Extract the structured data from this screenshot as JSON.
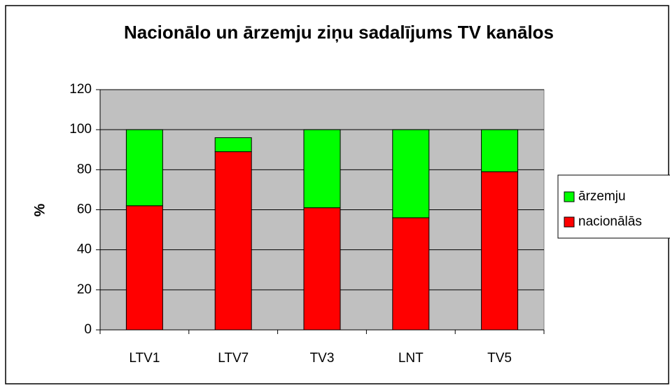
{
  "chart_data": {
    "type": "stacked_bar",
    "title": "Nacionālo un ārzemju ziņu sadalījums TV kanālos",
    "y_label": "%",
    "categories": [
      "LTV1",
      "LTV7",
      "TV3",
      "LNT",
      "TV5"
    ],
    "series": [
      {
        "name": "nacionālās",
        "color": "#ff0000",
        "values": [
          62,
          89,
          61,
          56,
          79
        ]
      },
      {
        "name": "ārzemju",
        "color": "#00ff00",
        "values": [
          38,
          7,
          39,
          44,
          21
        ]
      }
    ],
    "ylim": [
      0,
      120
    ],
    "yticks": [
      0,
      20,
      40,
      60,
      80,
      100,
      120
    ],
    "grid": true,
    "legend": "right"
  }
}
